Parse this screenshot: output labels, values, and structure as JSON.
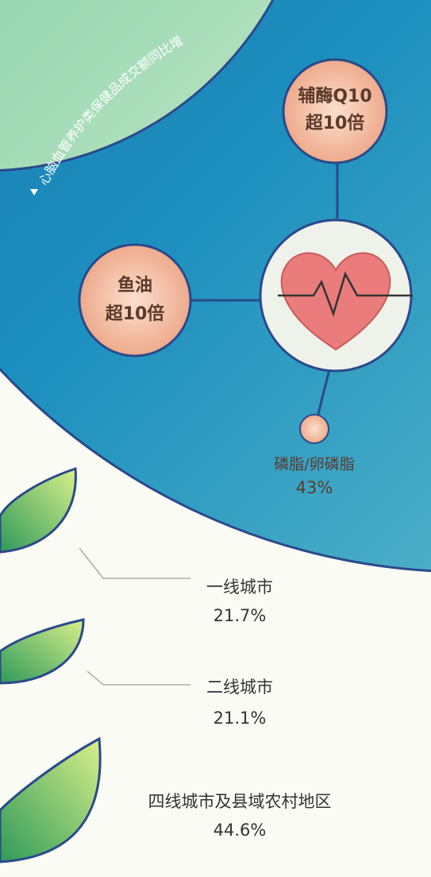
{
  "arc_label": "心脑血管养护类保健品成交额同比增",
  "bubbles": [
    {
      "name": "辅酶Q10",
      "value": "超10倍"
    },
    {
      "name": "鱼油",
      "value": "超10倍"
    },
    {
      "name": "磷脂/卵磷脂",
      "value": "43%"
    }
  ],
  "cities": [
    {
      "name": "一线城市",
      "value": "21.7%"
    },
    {
      "name": "二线城市",
      "value": "21.1%"
    },
    {
      "name": "四线城市及县域农村地区",
      "value": "44.6%"
    }
  ]
}
